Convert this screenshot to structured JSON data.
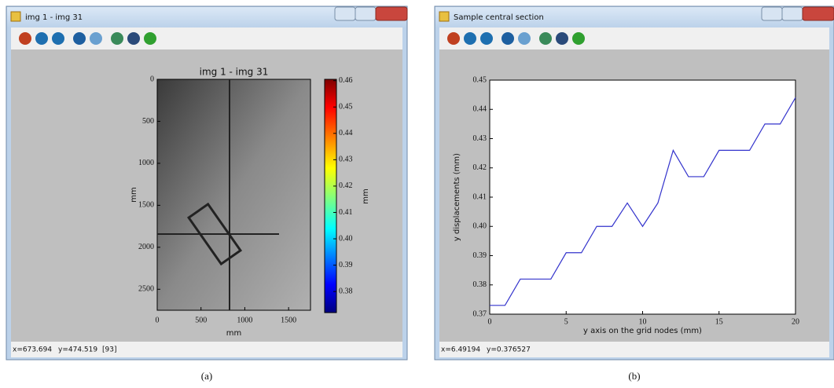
{
  "windows": [
    {
      "title": "img 1 - img 31",
      "status": [
        "x=673.694",
        "y=474.519",
        "[93]"
      ],
      "caption": "(a)"
    },
    {
      "title": "Sample central section",
      "status": [
        "x=6.49194",
        "y=0.376527"
      ],
      "caption": "(b)"
    }
  ],
  "chart_data": [
    {
      "type": "image",
      "title": "img 1 - img 31",
      "xlabel": "mm",
      "ylabel": "mm",
      "xlim": [
        0,
        1750
      ],
      "xticks": [
        0,
        500,
        1000,
        1500
      ],
      "ylim": [
        2750,
        0
      ],
      "yticks": [
        0,
        500,
        1000,
        1500,
        2000,
        2500
      ],
      "colorbar": {
        "label": "mm",
        "lim": [
          0.372,
          0.4605
        ],
        "ticks": [
          0.38,
          0.39,
          {
            "value": 0.4,
            "label": "0.40"
          },
          0.41,
          0.42,
          0.43,
          0.44,
          0.45,
          0.46
        ]
      }
    },
    {
      "type": "line",
      "xlabel": "y axis on the grid nodes (mm)",
      "ylabel": "y displacements (mm)",
      "color": "#3333cc",
      "x": [
        0,
        1,
        2,
        3,
        4,
        5,
        6,
        7,
        8,
        9,
        10,
        11,
        12,
        13,
        14,
        15,
        16,
        17,
        18,
        19,
        20
      ],
      "values": [
        0.373,
        0.373,
        0.382,
        0.382,
        0.382,
        0.391,
        0.391,
        0.4,
        0.4,
        0.408,
        0.4,
        0.408,
        0.426,
        0.417,
        0.417,
        0.426,
        0.426,
        0.426,
        0.435,
        0.435,
        0.444
      ],
      "xlim": [
        0,
        20
      ],
      "xticks": [
        0,
        5,
        10,
        15,
        20
      ],
      "ylim": [
        0.37,
        0.45
      ],
      "yticks": [
        0.37,
        0.38,
        0.39,
        {
          "value": 0.4,
          "label": "0.40"
        },
        0.41,
        0.42,
        0.43,
        0.44,
        0.45
      ]
    }
  ]
}
